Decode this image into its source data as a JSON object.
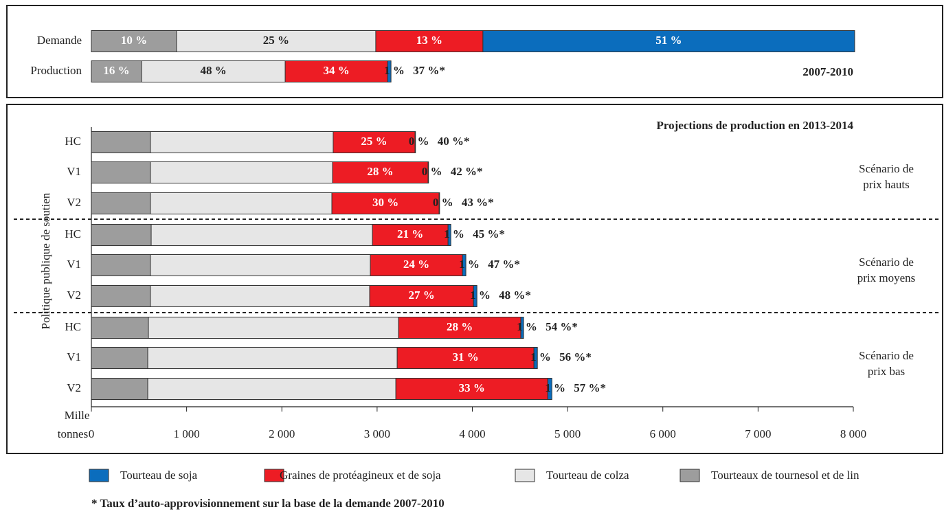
{
  "chart_data": [
    {
      "type": "stacked-barh",
      "title": "2007-2010",
      "categories": [
        "Demande",
        "Production"
      ],
      "series": [
        {
          "color": "#0b6dbd",
          "values": [
            3903,
            36
          ],
          "share_labels": [
            "51 %",
            "1 %"
          ]
        },
        {
          "color": "#ed1c24",
          "values": [
            1125,
            1075
          ],
          "share_labels": [
            "13 %",
            "34 %"
          ]
        },
        {
          "color": "#e6e6e6",
          "values": [
            2092,
            1508
          ],
          "share_labels": [
            "25 %",
            "48 %"
          ]
        },
        {
          "color": "#9d9d9d",
          "values": [
            894,
            527
          ],
          "share_labels": [
            "10 %",
            "16 %"
          ]
        }
      ],
      "self_supply_labels": [
        null,
        "37 %*"
      ]
    },
    {
      "type": "stacked-barh",
      "title": "Projections de production en 2013-2014",
      "ylabel": "Politique publique de soutien",
      "xlabel": [
        "Mille",
        "tonnes"
      ],
      "xlim": [
        0,
        8000
      ],
      "xticks": [
        0,
        {
          "value": 1000,
          "label": "1 000"
        },
        {
          "value": 2000,
          "label": "2 000"
        },
        {
          "value": 3000,
          "label": "3 000"
        },
        {
          "value": 4000,
          "label": "4 000"
        },
        {
          "value": 5000,
          "label": "5 000"
        },
        {
          "value": 6000,
          "label": "6 000"
        },
        {
          "value": 7000,
          "label": "7 000"
        },
        {
          "value": 8000,
          "label": "8 000"
        }
      ],
      "categories": [
        "HC",
        "V1",
        "V2",
        "HC",
        "V1",
        "V2",
        "HC",
        "V1",
        "V2"
      ],
      "group_labels": [
        [
          "Scénario de",
          "prix hauts"
        ],
        [
          "Scénario de",
          "prix moyens"
        ],
        [
          "Scénario de",
          "prix bas"
        ]
      ],
      "series": [
        {
          "name": "Tourteau de soja",
          "color": "#0b6dbd",
          "values": [
            5,
            5,
            5,
            29,
            36,
            36,
            29,
            36,
            43
          ],
          "share_labels": [
            "0 %",
            "0 %",
            "0 %",
            "1 %",
            "1 %",
            "1 %",
            "1 %",
            "1 %",
            "1 %"
          ]
        },
        {
          "name": "Graines de protéagineux et de soja",
          "color": "#ed1c24",
          "values": [
            859,
            1003,
            1126,
            794,
            967,
            1090,
            1284,
            1436,
            1595
          ],
          "share_labels": [
            "25 %",
            "28 %",
            "30 %",
            "21 %",
            "24 %",
            "27 %",
            "28 %",
            "31 %",
            "33 %"
          ]
        },
        {
          "name": "Tourteau de colza",
          "color": "#e6e6e6",
          "values": [
            1919,
            1912,
            1905,
            2323,
            2309,
            2302,
            2626,
            2619,
            2605
          ]
        },
        {
          "name": "Tourteaux de tournesol et de lin",
          "color": "#9d9d9d",
          "values": [
            620,
            620,
            620,
            628,
            620,
            620,
            599,
            592,
            592
          ]
        }
      ],
      "self_supply_labels": [
        "40 %*",
        "42 %*",
        "43 %*",
        "45 %*",
        "47 %*",
        "48 %*",
        "54 %*",
        "56 %*",
        "57 %*"
      ]
    }
  ],
  "footnote": "* Taux d’auto-approvisionnement sur la base de la demande 2007-2010"
}
